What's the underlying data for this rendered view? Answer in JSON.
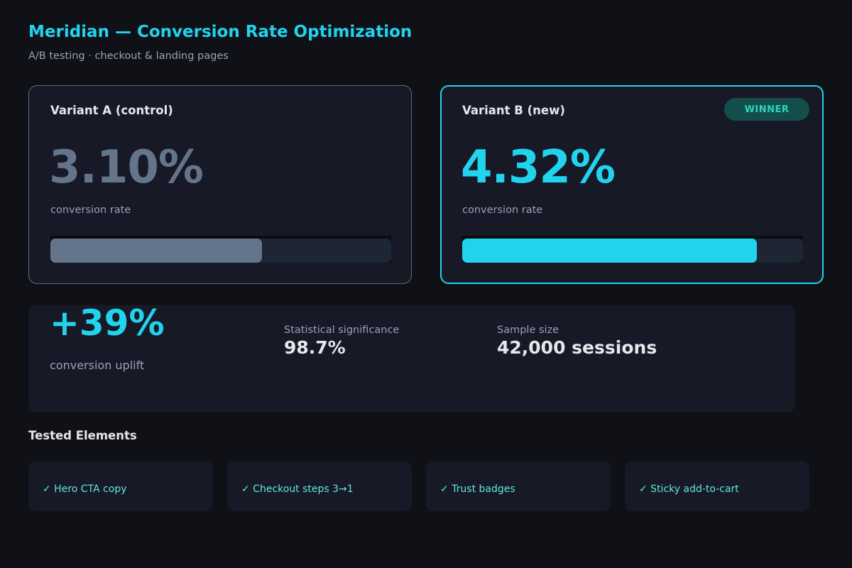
{
  "header": {
    "title": "Meridian — Conversion Rate Optimization",
    "subtitle": "A/B testing · checkout & landing pages"
  },
  "variants": [
    {
      "name": "Variant A (control)",
      "rate": "3.10%",
      "rate_caption": "conversion rate",
      "bar_fraction": 0.62,
      "bar_color": "#64748b"
    },
    {
      "name": "Variant B (new)",
      "rate": "4.32%",
      "rate_caption": "conversion rate",
      "bar_fraction": 0.865,
      "bar_color": "#22d3ee",
      "badge": "WINNER"
    }
  ],
  "summary": {
    "uplift": "+39%",
    "uplift_caption": "conversion uplift",
    "significance_label": "Statistical significance",
    "significance_value": "98.7%",
    "sample_label": "Sample size",
    "sample_value": "42,000 sessions"
  },
  "tested": {
    "title": "Tested Elements",
    "items": [
      "✓ Hero CTA copy",
      "✓ Checkout steps 3→1",
      "✓ Trust badges",
      "✓ Sticky add-to-cart"
    ]
  },
  "colors": {
    "accent": "#22d3ee",
    "muted": "#64748b",
    "badge_bg": "#134e4a",
    "badge_text": "#2dd4bf",
    "check_text": "#5eead4"
  }
}
